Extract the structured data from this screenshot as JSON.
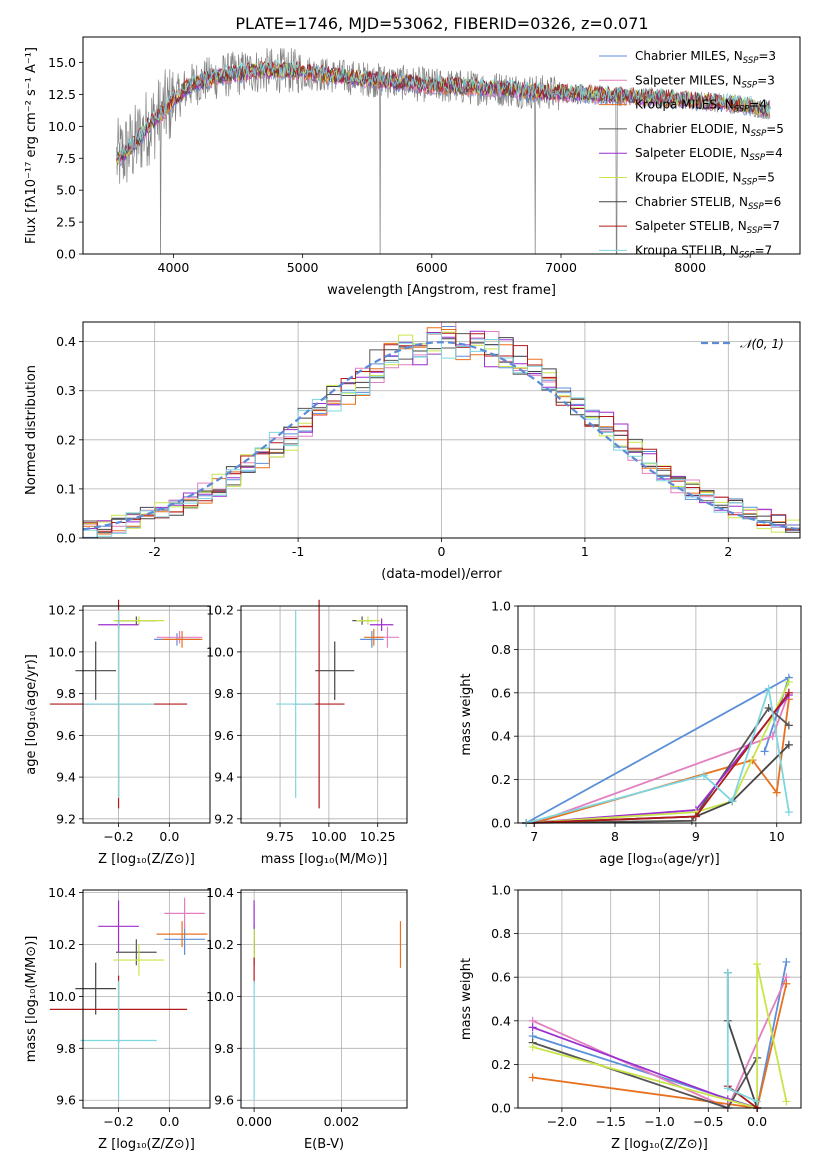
{
  "figure": {
    "title": "PLATE=1746, MJD=53062, FIBERID=0326, z=0.071"
  },
  "colors": {
    "Chabrier MILES": "#5b8fd9",
    "Salpeter MILES": "#e37fc0",
    "Kroupa MILES": "#e8711f",
    "Chabrier ELODIE": "#555555",
    "Salpeter ELODIE": "#9b2fcf",
    "Kroupa ELODIE": "#c8e64a",
    "Chabrier STELIB": "#444444",
    "Salpeter STELIB": "#b01a1a",
    "Kroupa STELIB": "#7fd6e0"
  },
  "legend_spectrum": [
    {
      "model": "Chabrier MILES",
      "text": "Chabrier MILES, N",
      "sub": "SSP",
      "tail": "=3"
    },
    {
      "model": "Salpeter MILES",
      "text": "Salpeter MILES, N",
      "sub": "SSP",
      "tail": "=3"
    },
    {
      "model": "Kroupa MILES",
      "text": "Kroupa MILES, N",
      "sub": "SSP",
      "tail": "=4"
    },
    {
      "model": "Chabrier ELODIE",
      "text": "Chabrier ELODIE, N",
      "sub": "SSP",
      "tail": "=5"
    },
    {
      "model": "Salpeter ELODIE",
      "text": "Salpeter ELODIE, N",
      "sub": "SSP",
      "tail": "=4"
    },
    {
      "model": "Kroupa ELODIE",
      "text": "Kroupa ELODIE, N",
      "sub": "SSP",
      "tail": "=5"
    },
    {
      "model": "Chabrier STELIB",
      "text": "Chabrier STELIB, N",
      "sub": "SSP",
      "tail": "=6"
    },
    {
      "model": "Salpeter STELIB",
      "text": "Salpeter STELIB, N",
      "sub": "SSP",
      "tail": "=7"
    },
    {
      "model": "Kroupa STELIB",
      "text": "Kroupa STELIB, N",
      "sub": "SSP",
      "tail": "=7"
    }
  ],
  "chart_data": [
    {
      "id": "spectrum",
      "type": "line",
      "xlabel": "wavelength [Angstrom, rest frame]",
      "ylabel": "Flux [fλ10⁻¹⁷ erg cm⁻² s⁻¹ A⁻¹]",
      "xlim": [
        3300,
        8850
      ],
      "ylim": [
        0,
        17
      ],
      "xticks": [
        4000,
        5000,
        6000,
        7000,
        8000
      ],
      "yticks": [
        0.0,
        2.5,
        5.0,
        7.5,
        10.0,
        12.5,
        15.0
      ],
      "grid": false,
      "data_color": "#808080",
      "model_continuum": {
        "x": [
          3560,
          3700,
          3800,
          3900,
          4000,
          4100,
          4200,
          4400,
          4600,
          4800,
          5000,
          5200,
          5400,
          5600,
          5800,
          6000,
          6200,
          6400,
          6600,
          6800,
          7000,
          7200,
          7400,
          7600,
          7800,
          8000,
          8200,
          8400,
          8600
        ],
        "y": [
          7.4,
          8.6,
          10.0,
          10.9,
          12.0,
          13.0,
          13.5,
          14.0,
          14.3,
          14.4,
          14.3,
          14.0,
          13.8,
          13.6,
          13.4,
          13.2,
          13.1,
          13.0,
          12.9,
          12.7,
          12.6,
          12.5,
          12.4,
          12.3,
          12.2,
          12.0,
          11.9,
          11.7,
          11.3
        ]
      }
    },
    {
      "id": "residual-histogram",
      "type": "bar",
      "xlabel": "(data-model)/error",
      "ylabel": "Normed distribution",
      "xlim": [
        -2.5,
        2.5
      ],
      "ylim": [
        0,
        0.44
      ],
      "xticks": [
        -2,
        -1,
        0,
        1,
        2
      ],
      "yticks": [
        0.0,
        0.1,
        0.2,
        0.3,
        0.4
      ],
      "grid": true,
      "legend": "top-right",
      "gaussian_label": "𝒩(0, 1)",
      "gaussian_color": "#5b8ad6",
      "bin_width": 0.1,
      "bin_start": -2.5
    },
    {
      "id": "age-vs-Z",
      "type": "scatter",
      "xlabel": "Z [log₁₀(Z/Z⊙)]",
      "ylabel": "age  [log₁₀(age/yr)]",
      "xlim": [
        -0.34,
        0.16
      ],
      "ylim": [
        9.18,
        10.22
      ],
      "xticks": [
        -0.2,
        0.0
      ],
      "xticklabels": [
        "−0.2",
        "0.0"
      ],
      "yticks": [
        9.2,
        9.4,
        9.6,
        9.8,
        10.0,
        10.2
      ],
      "grid": true,
      "points": [
        {
          "model": "Chabrier MILES",
          "x": 0.03,
          "xerr": 0.09,
          "y": 10.06,
          "yerr": 0.03
        },
        {
          "model": "Salpeter MILES",
          "x": 0.04,
          "xerr": 0.09,
          "y": 10.07,
          "yerr": 0.03
        },
        {
          "model": "Kroupa MILES",
          "x": 0.05,
          "xerr": 0.08,
          "y": 10.06,
          "yerr": 0.04
        },
        {
          "model": "Chabrier ELODIE",
          "x": -0.13,
          "xerr": 0.08,
          "y": 10.15,
          "yerr": 0.02
        },
        {
          "model": "Salpeter ELODIE",
          "x": -0.2,
          "xerr": 0.08,
          "y": 10.13,
          "yerr": 0.02
        },
        {
          "model": "Kroupa ELODIE",
          "x": -0.12,
          "xerr": 0.1,
          "y": 10.15,
          "yerr": 0.02
        },
        {
          "model": "Chabrier STELIB",
          "x": -0.29,
          "xerr": 0.08,
          "y": 9.91,
          "yerr": 0.14
        },
        {
          "model": "Salpeter STELIB",
          "x": -0.2,
          "xerr": 0.27,
          "y": 9.75,
          "yerr": 0.5
        },
        {
          "model": "Kroupa STELIB",
          "x": -0.2,
          "xerr": 0.14,
          "y": 9.75,
          "yerr": 0.45
        }
      ]
    },
    {
      "id": "age-vs-mass",
      "type": "scatter",
      "xlabel": "mass [log₁₀(M/M⊙)]",
      "ylabel": "",
      "xlim": [
        9.55,
        10.4
      ],
      "ylim": [
        9.18,
        10.22
      ],
      "xticks": [
        9.75,
        10.0,
        10.25
      ],
      "xticklabels": [
        "9.75",
        "10.00",
        "10.25"
      ],
      "yticks": [
        9.2,
        9.4,
        9.6,
        9.8,
        10.0,
        10.2
      ],
      "grid": true,
      "points": [
        {
          "model": "Chabrier MILES",
          "x": 10.22,
          "xerr": 0.06,
          "y": 10.06,
          "yerr": 0.04
        },
        {
          "model": "Salpeter MILES",
          "x": 10.3,
          "xerr": 0.06,
          "y": 10.07,
          "yerr": 0.05
        },
        {
          "model": "Kroupa MILES",
          "x": 10.23,
          "xerr": 0.05,
          "y": 10.07,
          "yerr": 0.04
        },
        {
          "model": "Chabrier ELODIE",
          "x": 10.17,
          "xerr": 0.05,
          "y": 10.15,
          "yerr": 0.02
        },
        {
          "model": "Salpeter ELODIE",
          "x": 10.27,
          "xerr": 0.06,
          "y": 10.13,
          "yerr": 0.03
        },
        {
          "model": "Kroupa ELODIE",
          "x": 10.2,
          "xerr": 0.06,
          "y": 10.15,
          "yerr": 0.02
        },
        {
          "model": "Chabrier STELIB",
          "x": 10.03,
          "xerr": 0.1,
          "y": 9.91,
          "yerr": 0.14
        },
        {
          "model": "Salpeter STELIB",
          "x": 9.95,
          "xerr": 0.13,
          "y": 9.75,
          "yerr": 0.5
        },
        {
          "model": "Kroupa STELIB",
          "x": 9.83,
          "xerr": 0.1,
          "y": 9.75,
          "yerr": 0.45
        }
      ]
    },
    {
      "id": "mass-weight-vs-age",
      "type": "line",
      "xlabel": "age  [log₁₀(age/yr)]",
      "ylabel": "mass weight",
      "xlim": [
        6.8,
        10.3
      ],
      "ylim": [
        0,
        1.0
      ],
      "xticks": [
        7,
        8,
        9,
        10
      ],
      "yticks": [
        0.0,
        0.2,
        0.4,
        0.6,
        0.8,
        1.0
      ],
      "grid": true,
      "series": [
        {
          "model": "Chabrier MILES",
          "x": [
            6.9,
            10.15,
            9.85
          ],
          "y": [
            0.0,
            0.67,
            0.33
          ]
        },
        {
          "model": "Salpeter MILES",
          "x": [
            7.0,
            9.95,
            10.15
          ],
          "y": [
            0.0,
            0.4,
            0.6
          ]
        },
        {
          "model": "Kroupa MILES",
          "x": [
            7.0,
            9.7,
            10.0,
            10.15
          ],
          "y": [
            0.0,
            0.29,
            0.14,
            0.57
          ]
        },
        {
          "model": "Chabrier ELODIE",
          "x": [
            6.9,
            8.95,
            9.9,
            10.15
          ],
          "y": [
            0.0,
            0.01,
            0.53,
            0.45
          ]
        },
        {
          "model": "Salpeter ELODIE",
          "x": [
            6.9,
            9.0,
            10.15
          ],
          "y": [
            0.0,
            0.06,
            0.59
          ]
        },
        {
          "model": "Kroupa ELODIE",
          "x": [
            6.9,
            9.0,
            9.45,
            10.15
          ],
          "y": [
            0.0,
            0.05,
            0.1,
            0.65
          ]
        },
        {
          "model": "Chabrier STELIB",
          "x": [
            6.9,
            9.0,
            9.45,
            10.15
          ],
          "y": [
            0.0,
            0.03,
            0.1,
            0.36
          ]
        },
        {
          "model": "Salpeter STELIB",
          "x": [
            6.9,
            9.0,
            10.15
          ],
          "y": [
            0.0,
            0.03,
            0.6
          ]
        },
        {
          "model": "Kroupa STELIB",
          "x": [
            6.9,
            9.1,
            9.45,
            9.9,
            10.15
          ],
          "y": [
            0.0,
            0.22,
            0.1,
            0.62,
            0.05
          ]
        }
      ]
    },
    {
      "id": "mass-vs-Z",
      "type": "scatter",
      "xlabel": "Z [log₁₀(Z/Z⊙)]",
      "ylabel": "mass [log₁₀(M/M⊙)]",
      "xlim": [
        -0.34,
        0.16
      ],
      "ylim": [
        9.57,
        10.41
      ],
      "xticks": [
        -0.2,
        0.0
      ],
      "xticklabels": [
        "−0.2",
        "0.0"
      ],
      "yticks": [
        9.6,
        9.8,
        10.0,
        10.2,
        10.4
      ],
      "grid": true,
      "points": [
        {
          "model": "Chabrier MILES",
          "x": 0.06,
          "xerr": 0.08,
          "y": 10.22,
          "yerr": 0.06
        },
        {
          "model": "Salpeter MILES",
          "x": 0.06,
          "xerr": 0.08,
          "y": 10.32,
          "yerr": 0.06
        },
        {
          "model": "Kroupa MILES",
          "x": 0.05,
          "xerr": 0.1,
          "y": 10.24,
          "yerr": 0.05
        },
        {
          "model": "Chabrier ELODIE",
          "x": -0.13,
          "xerr": 0.08,
          "y": 10.17,
          "yerr": 0.05
        },
        {
          "model": "Salpeter ELODIE",
          "x": -0.2,
          "xerr": 0.08,
          "y": 10.27,
          "yerr": 0.1
        },
        {
          "model": "Kroupa ELODIE",
          "x": -0.12,
          "xerr": 0.1,
          "y": 10.14,
          "yerr": 0.06
        },
        {
          "model": "Chabrier STELIB",
          "x": -0.29,
          "xerr": 0.08,
          "y": 10.03,
          "yerr": 0.1
        },
        {
          "model": "Salpeter STELIB",
          "x": -0.2,
          "xerr": 0.27,
          "y": 9.95,
          "yerr": 0.13
        },
        {
          "model": "Kroupa STELIB",
          "x": -0.2,
          "xerr": 0.15,
          "y": 9.83,
          "yerr": 0.23
        }
      ]
    },
    {
      "id": "mass-vs-EBV",
      "type": "scatter",
      "xlabel": "E(B-V)",
      "ylabel": "",
      "xlim": [
        -0.0003,
        0.0035
      ],
      "ylim": [
        9.57,
        10.41
      ],
      "xticks": [
        0.0,
        0.002
      ],
      "xticklabels": [
        "0.000",
        "0.002"
      ],
      "yticks": [
        9.6,
        9.8,
        10.0,
        10.2,
        10.4
      ],
      "grid": true,
      "points": [
        {
          "model": "Chabrier MILES",
          "x": 0.0,
          "xerr": 0.0,
          "y": 10.22,
          "yerr": 0.06
        },
        {
          "model": "Kroupa MILES",
          "x": 0.00335,
          "xerr": 0.0,
          "y": 10.2,
          "yerr": 0.09
        },
        {
          "model": "Chabrier ELODIE",
          "x": 0.0,
          "xerr": 0.0,
          "y": 10.17,
          "yerr": 0.05
        },
        {
          "model": "Salpeter ELODIE",
          "x": 0.0,
          "xerr": 0.0,
          "y": 10.27,
          "yerr": 0.1
        },
        {
          "model": "Kroupa ELODIE",
          "x": 0.0,
          "xerr": 0.0,
          "y": 10.2,
          "yerr": 0.06
        },
        {
          "model": "Salpeter STELIB",
          "x": 0.0,
          "xerr": 0.0,
          "y": 10.1,
          "yerr": 0.05
        },
        {
          "model": "Kroupa STELIB",
          "x": 0.0,
          "xerr": 0.0,
          "y": 9.83,
          "yerr": 0.23
        }
      ]
    },
    {
      "id": "mass-weight-vs-Z",
      "type": "line",
      "xlabel": "Z [log₁₀(Z/Z⊙)]",
      "ylabel": "mass weight",
      "xlim": [
        -2.45,
        0.45
      ],
      "ylim": [
        0,
        1.0
      ],
      "xticks": [
        -2.0,
        -1.5,
        -1.0,
        -0.5,
        0.0
      ],
      "xticklabels": [
        "−2.0",
        "−1.5",
        "−1.0",
        "−0.5",
        "0.0"
      ],
      "yticks": [
        0.0,
        0.2,
        0.4,
        0.6,
        0.8,
        1.0
      ],
      "grid": true,
      "series": [
        {
          "model": "Chabrier MILES",
          "x": [
            -2.3,
            0.0,
            0.3
          ],
          "y": [
            0.33,
            0.0,
            0.67
          ]
        },
        {
          "model": "Salpeter MILES",
          "x": [
            -2.3,
            -0.3,
            0.3
          ],
          "y": [
            0.4,
            0.0,
            0.6
          ]
        },
        {
          "model": "Kroupa MILES",
          "x": [
            -2.3,
            0.0,
            0.3
          ],
          "y": [
            0.14,
            0.0,
            0.57
          ]
        },
        {
          "model": "Chabrier ELODIE",
          "x": [
            -2.3,
            -0.3,
            0.0
          ],
          "y": [
            0.3,
            0.0,
            0.23
          ]
        },
        {
          "model": "Salpeter ELODIE",
          "x": [
            -2.3,
            -0.3,
            0.0
          ],
          "y": [
            0.37,
            0.04,
            0.0
          ]
        },
        {
          "model": "Kroupa ELODIE",
          "x": [
            -2.3,
            0.0,
            0.0,
            0.3
          ],
          "y": [
            0.28,
            0.0,
            0.66,
            0.03
          ]
        },
        {
          "model": "Chabrier STELIB",
          "x": [
            -0.3,
            -0.3,
            0.0
          ],
          "y": [
            0.62,
            0.4,
            0.0
          ]
        },
        {
          "model": "Salpeter STELIB",
          "x": [
            -0.3,
            0.0
          ],
          "y": [
            0.1,
            0.0
          ]
        },
        {
          "model": "Kroupa STELIB",
          "x": [
            -0.3,
            -0.3,
            0.0
          ],
          "y": [
            0.62,
            0.09,
            0.03
          ]
        }
      ]
    }
  ]
}
